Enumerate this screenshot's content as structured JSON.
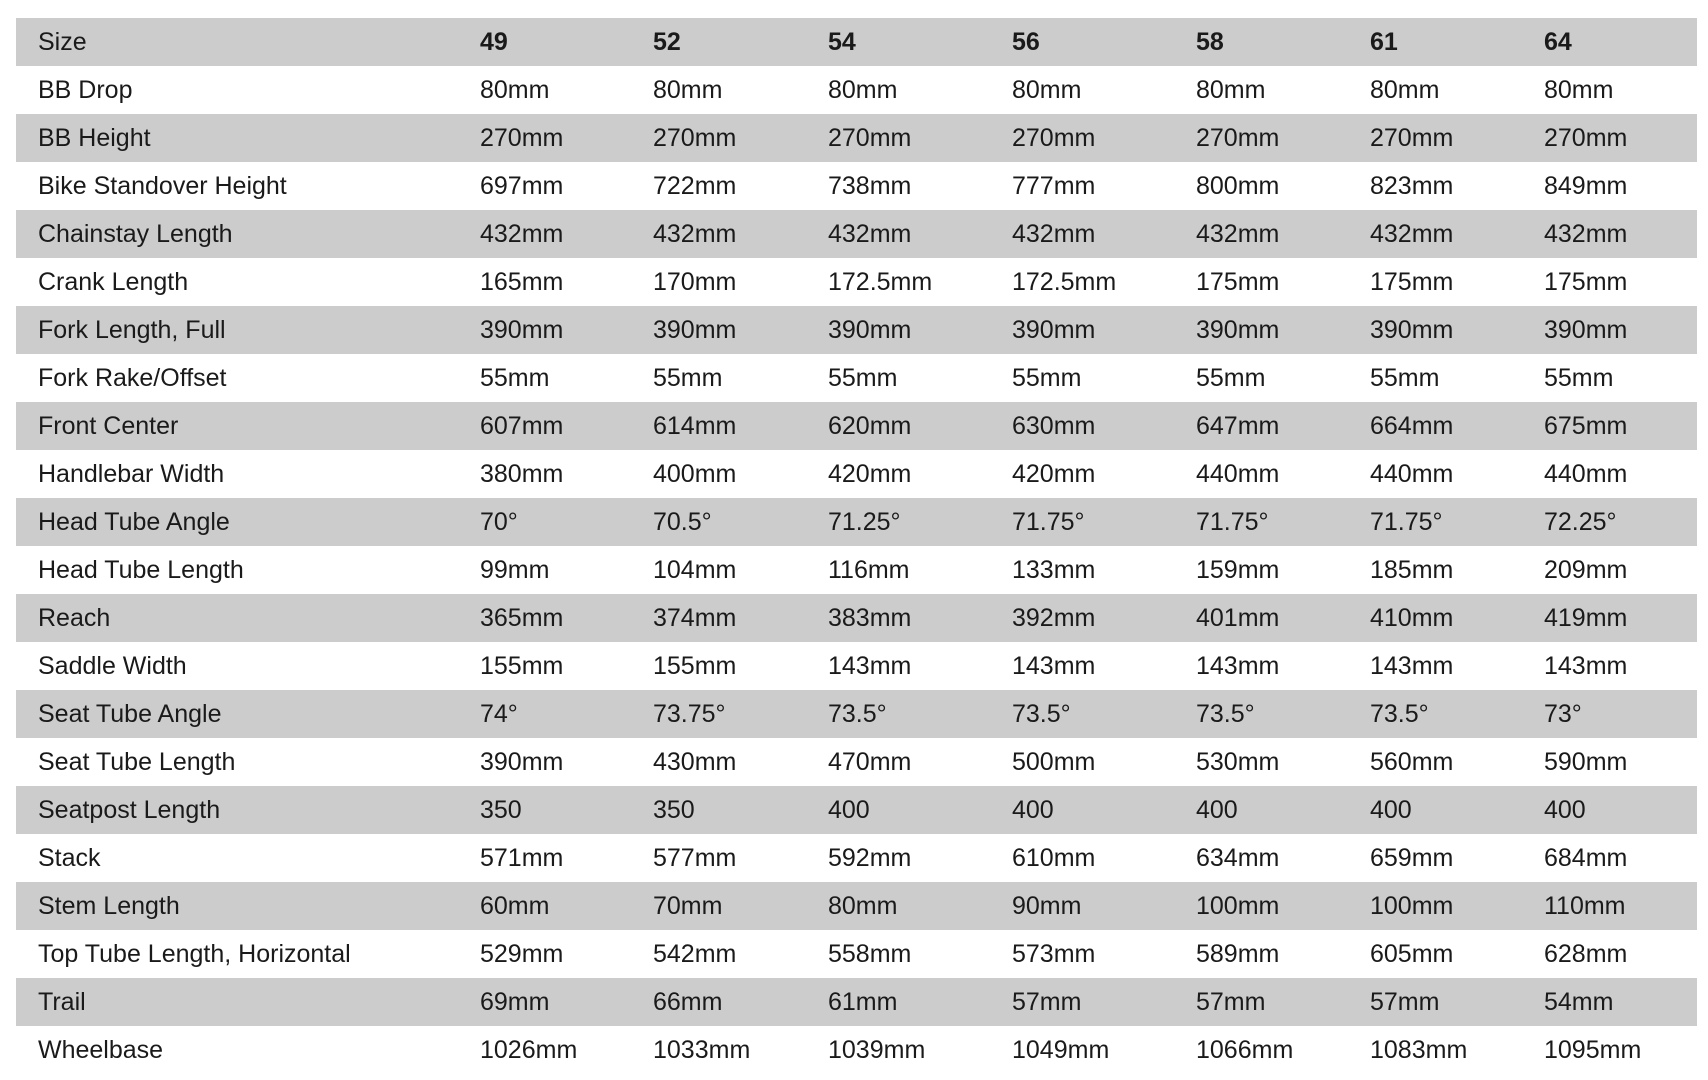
{
  "table": {
    "header": [
      "Size",
      "49",
      "52",
      "54",
      "56",
      "58",
      "61",
      "64"
    ],
    "rows": [
      [
        "BB Drop",
        "80mm",
        "80mm",
        "80mm",
        "80mm",
        "80mm",
        "80mm",
        "80mm"
      ],
      [
        "BB Height",
        "270mm",
        "270mm",
        "270mm",
        "270mm",
        "270mm",
        "270mm",
        "270mm"
      ],
      [
        "Bike Standover Height",
        "697mm",
        "722mm",
        "738mm",
        "777mm",
        "800mm",
        "823mm",
        "849mm"
      ],
      [
        "Chainstay Length",
        "432mm",
        "432mm",
        "432mm",
        "432mm",
        "432mm",
        "432mm",
        "432mm"
      ],
      [
        "Crank Length",
        "165mm",
        "170mm",
        "172.5mm",
        "172.5mm",
        "175mm",
        "175mm",
        "175mm"
      ],
      [
        "Fork Length, Full",
        "390mm",
        "390mm",
        "390mm",
        "390mm",
        "390mm",
        "390mm",
        "390mm"
      ],
      [
        "Fork Rake/Offset",
        "55mm",
        "55mm",
        "55mm",
        "55mm",
        "55mm",
        "55mm",
        "55mm"
      ],
      [
        "Front Center",
        "607mm",
        "614mm",
        "620mm",
        "630mm",
        "647mm",
        "664mm",
        "675mm"
      ],
      [
        "Handlebar Width",
        "380mm",
        "400mm",
        "420mm",
        "420mm",
        "440mm",
        "440mm",
        "440mm"
      ],
      [
        "Head Tube Angle",
        "70°",
        "70.5°",
        "71.25°",
        "71.75°",
        "71.75°",
        "71.75°",
        "72.25°"
      ],
      [
        "Head Tube Length",
        "99mm",
        "104mm",
        "116mm",
        "133mm",
        "159mm",
        "185mm",
        "209mm"
      ],
      [
        "Reach",
        "365mm",
        "374mm",
        "383mm",
        "392mm",
        "401mm",
        "410mm",
        "419mm"
      ],
      [
        "Saddle Width",
        "155mm",
        "155mm",
        "143mm",
        "143mm",
        "143mm",
        "143mm",
        "143mm"
      ],
      [
        "Seat Tube Angle",
        "74°",
        "73.75°",
        "73.5°",
        "73.5°",
        "73.5°",
        "73.5°",
        "73°"
      ],
      [
        "Seat Tube Length",
        "390mm",
        "430mm",
        "470mm",
        "500mm",
        "530mm",
        "560mm",
        "590mm"
      ],
      [
        "Seatpost Length",
        "350",
        "350",
        "400",
        "400",
        "400",
        "400",
        "400"
      ],
      [
        "Stack",
        "571mm",
        "577mm",
        "592mm",
        "610mm",
        "634mm",
        "659mm",
        "684mm"
      ],
      [
        "Stem Length",
        "60mm",
        "70mm",
        "80mm",
        "90mm",
        "100mm",
        "100mm",
        "110mm"
      ],
      [
        "Top Tube Length, Horizontal",
        "529mm",
        "542mm",
        "558mm",
        "573mm",
        "589mm",
        "605mm",
        "628mm"
      ],
      [
        "Trail",
        "69mm",
        "66mm",
        "61mm",
        "57mm",
        "57mm",
        "57mm",
        "54mm"
      ],
      [
        "Wheelbase",
        "1026mm",
        "1033mm",
        "1039mm",
        "1049mm",
        "1066mm",
        "1083mm",
        "1095mm"
      ]
    ]
  }
}
